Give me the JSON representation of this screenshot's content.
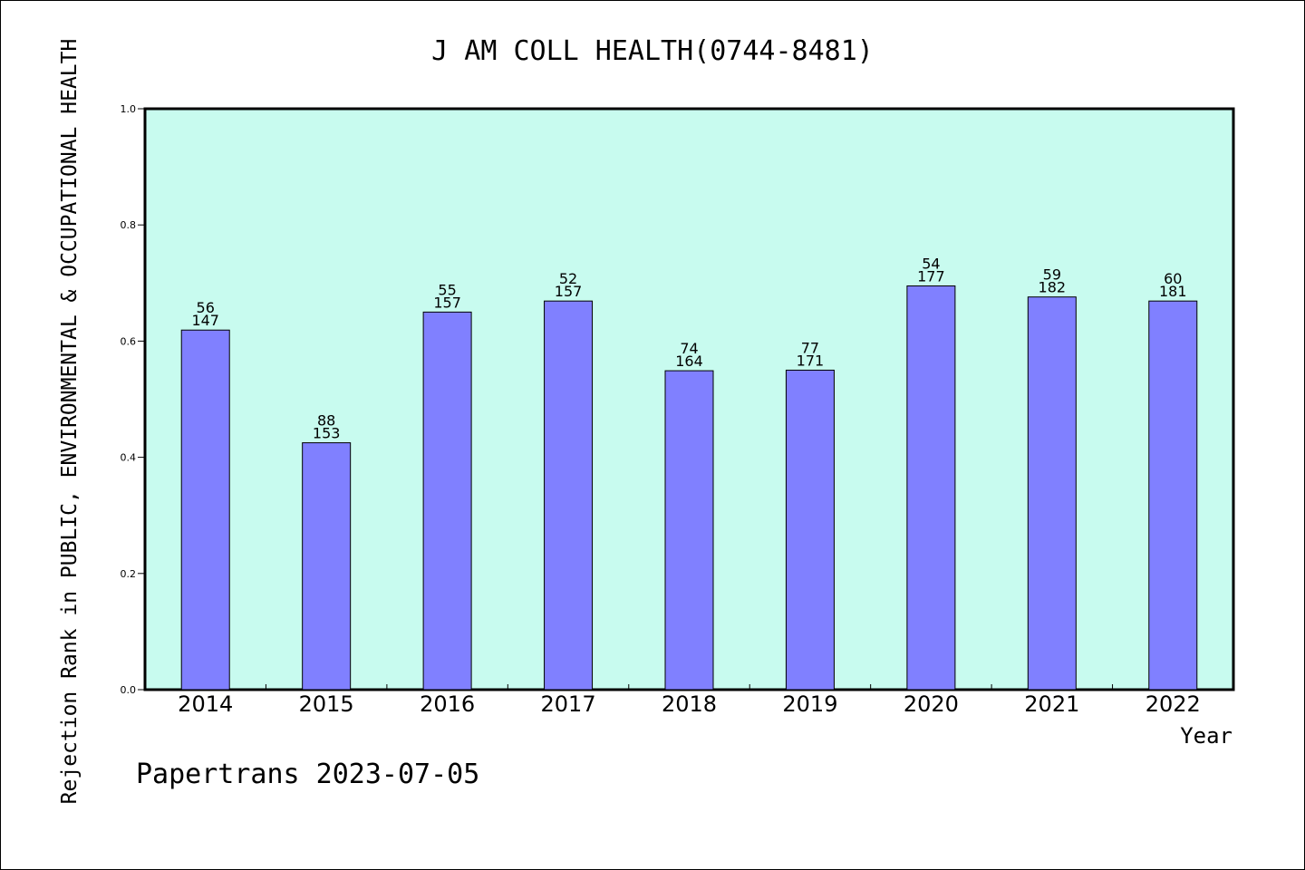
{
  "chart_data": {
    "type": "bar",
    "title": "J AM COLL HEALTH(0744-8481)",
    "xlabel": "Year",
    "ylabel": "Rejection Rank in PUBLIC, ENVIRONMENTAL & OCCUPATIONAL HEALTH",
    "ylim": [
      0,
      1.0
    ],
    "yticks": [
      "0.0",
      "0.2",
      "0.4",
      "0.6",
      "0.8",
      "1.0"
    ],
    "categories": [
      "2014",
      "2015",
      "2016",
      "2017",
      "2018",
      "2019",
      "2020",
      "2021",
      "2022"
    ],
    "values": [
      0.619,
      0.425,
      0.65,
      0.669,
      0.549,
      0.55,
      0.695,
      0.676,
      0.669
    ],
    "rank_labels": [
      "56",
      "88",
      "55",
      "52",
      "74",
      "77",
      "54",
      "59",
      "60"
    ],
    "total_labels": [
      "147",
      "153",
      "157",
      "157",
      "164",
      "171",
      "177",
      "182",
      "181"
    ],
    "grid": false,
    "colors": {
      "plot_bg": "#c8fbef",
      "bar_fill": "#8080ff",
      "bar_stroke": "#000000"
    }
  },
  "footer": {
    "credit": "Papertrans 2023-07-05"
  }
}
